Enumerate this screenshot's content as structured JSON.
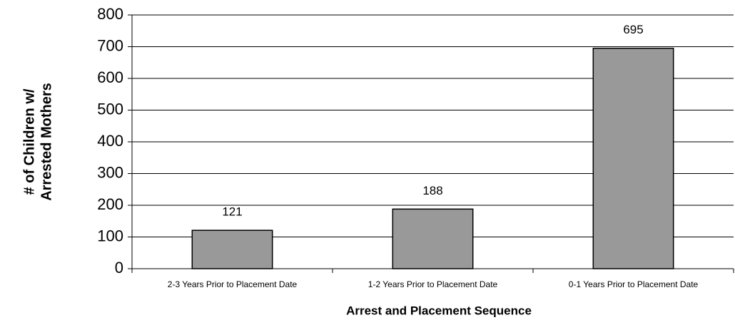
{
  "chart_data": {
    "type": "bar",
    "ylabel": [
      "# of Children w/",
      "Arrested Mothers"
    ],
    "xlabel": "Arrest and Placement Sequence",
    "categories": [
      "2-3 Years Prior to Placement Date",
      "1-2 Years Prior to Placement Date",
      "0-1 Years Prior to Placement Date"
    ],
    "values": [
      121,
      188,
      695
    ],
    "color": "#999999",
    "ylim": [
      0,
      800
    ],
    "yticks": [
      0,
      100,
      200,
      300,
      400,
      500,
      600,
      700,
      800
    ],
    "grid": true
  }
}
